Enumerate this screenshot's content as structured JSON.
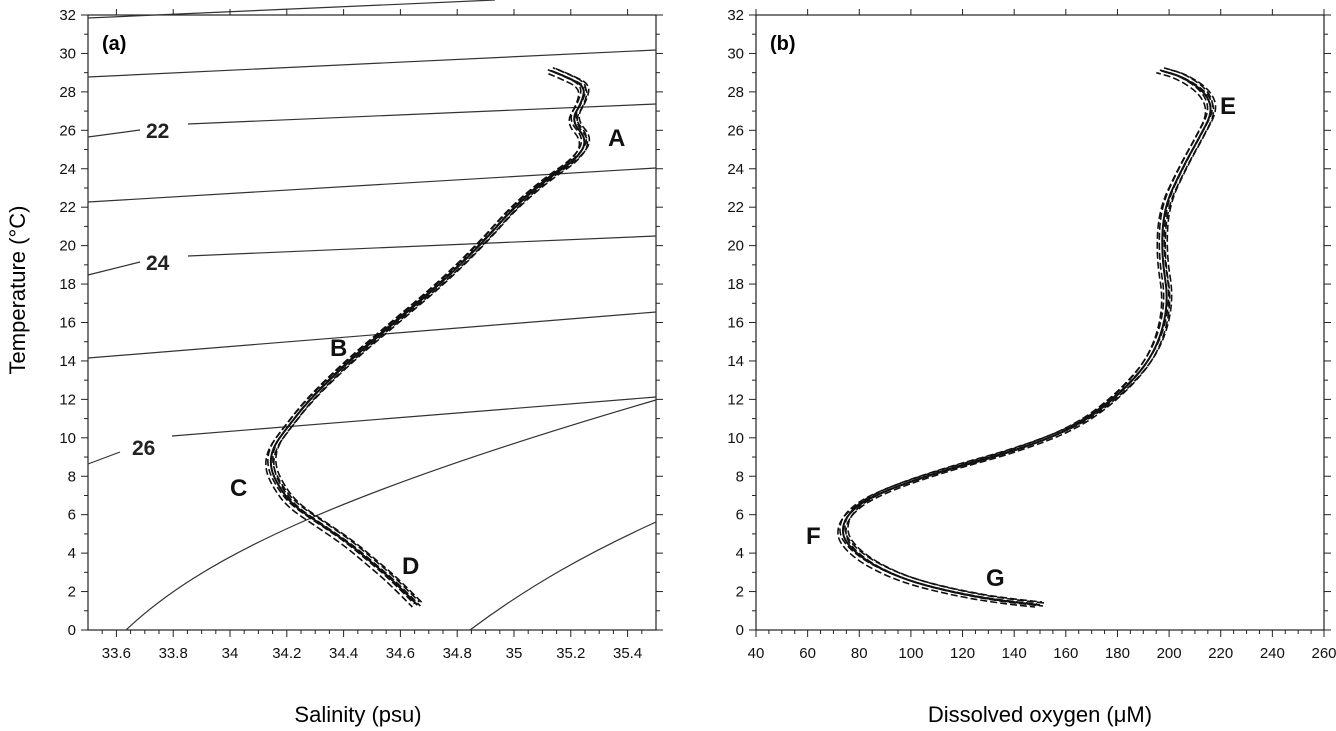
{
  "chart_data": [
    {
      "id": "a",
      "type": "line",
      "panel_label": "(a)",
      "xlabel": "Salinity (psu)",
      "ylabel": "Temperature (°C)",
      "xlim": [
        33.5,
        35.5
      ],
      "ylim": [
        0,
        32
      ],
      "x_ticks": [
        "33.6",
        "33.8",
        "34",
        "34.2",
        "34.4",
        "34.6",
        "34.8",
        "35",
        "35.2",
        "35.4"
      ],
      "y_ticks": [
        "0",
        "2",
        "4",
        "6",
        "8",
        "10",
        "12",
        "14",
        "16",
        "18",
        "20",
        "22",
        "24",
        "26",
        "28",
        "30",
        "32"
      ],
      "isopycnal_labels": [
        "22",
        "24",
        "26"
      ],
      "point_labels": [
        "A",
        "B",
        "C",
        "D"
      ],
      "series": [
        {
          "x": [
            34.66,
            34.58,
            34.5,
            34.42,
            34.32,
            34.22,
            34.17,
            34.14,
            34.15,
            34.2,
            34.28,
            34.42,
            34.58,
            34.74,
            34.88,
            35.0,
            35.12,
            35.22,
            35.26,
            35.2,
            35.24,
            35.25,
            35.18,
            35.13
          ],
          "y": [
            1.3,
            2.5,
            3.5,
            4.5,
            5.5,
            6.5,
            7.5,
            8.5,
            9.5,
            10.5,
            12.0,
            14.0,
            16.0,
            18.0,
            20.0,
            22.0,
            23.5,
            24.5,
            25.5,
            26.5,
            27.5,
            28.3,
            28.8,
            29.1
          ]
        }
      ]
    },
    {
      "id": "b",
      "type": "line",
      "panel_label": "(b)",
      "xlabel": "Dissolved oxygen (μM)",
      "ylabel": "",
      "xlim": [
        40,
        260
      ],
      "ylim": [
        0,
        32
      ],
      "x_ticks": [
        "40",
        "60",
        "80",
        "100",
        "120",
        "140",
        "160",
        "180",
        "200",
        "220",
        "240",
        "260"
      ],
      "y_ticks": [
        "0",
        "2",
        "4",
        "6",
        "8",
        "10",
        "12",
        "14",
        "16",
        "18",
        "20",
        "22",
        "24",
        "26",
        "28",
        "30",
        "32"
      ],
      "point_labels": [
        "E",
        "F",
        "G"
      ],
      "series": [
        {
          "x": [
            150,
            135,
            115,
            98,
            85,
            77,
            73,
            75,
            85,
            110,
            140,
            165,
            183,
            195,
            200,
            197,
            198,
            205,
            212,
            217,
            214,
            205,
            197
          ],
          "y": [
            1.3,
            1.5,
            2.0,
            2.6,
            3.4,
            4.2,
            5.0,
            6.0,
            7.0,
            8.2,
            9.3,
            10.6,
            12.5,
            14.5,
            17.0,
            19.5,
            22.0,
            24.0,
            25.7,
            27.0,
            28.0,
            28.8,
            29.1
          ]
        }
      ]
    }
  ]
}
